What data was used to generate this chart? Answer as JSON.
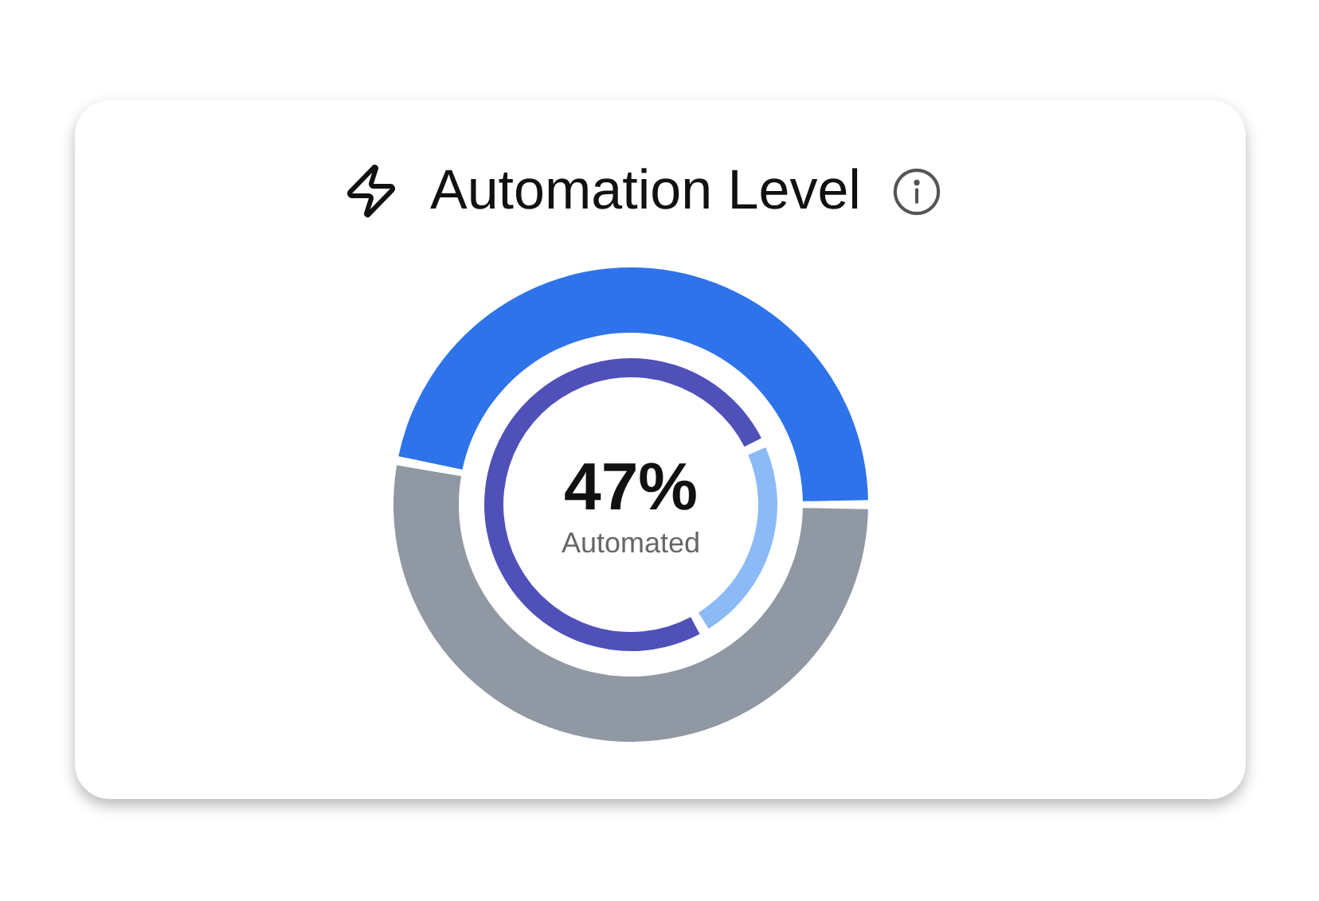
{
  "chart_data": {
    "type": "donut",
    "title": "Automation Level",
    "categories": [
      null,
      null
    ],
    "series": [
      {
        "colors": [
          "#8f98a3",
          "#2e73ea"
        ],
        "values": [
          53,
          47
        ]
      },
      {
        "colors": [
          "#8bbaf6",
          "#5050b9"
        ],
        "values": [
          23,
          77
        ]
      }
    ],
    "annotations": [
      "47%",
      "Automated"
    ]
  }
}
